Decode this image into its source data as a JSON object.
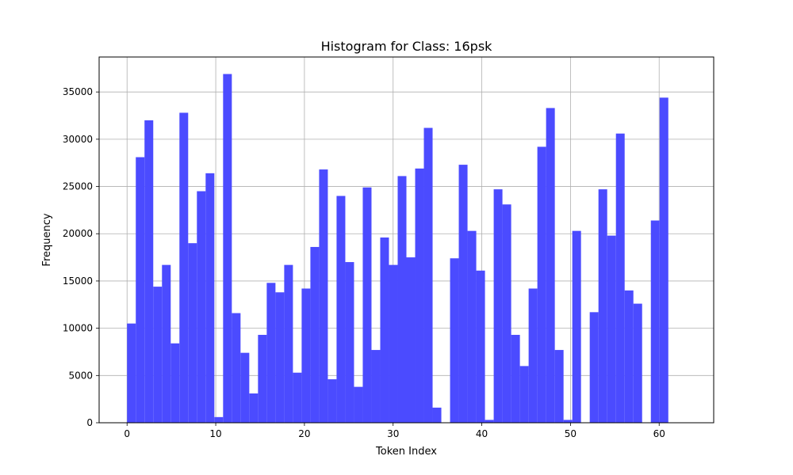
{
  "chart_data": {
    "type": "bar",
    "title": "Histogram for Class: 16psk",
    "xlabel": "Token Index",
    "ylabel": "Frequency",
    "xlim": [
      -3.15,
      66.15
    ],
    "ylim": [
      0,
      38700
    ],
    "xticks": [
      0,
      10,
      20,
      30,
      40,
      50,
      60
    ],
    "yticks": [
      0,
      5000,
      10000,
      15000,
      20000,
      25000,
      30000,
      35000
    ],
    "grid": true,
    "bar_color": "#4b4bff",
    "bin_start": 0,
    "bin_width": 0.984375,
    "values": [
      10500,
      28100,
      32000,
      14400,
      16700,
      8400,
      32800,
      19000,
      24500,
      26400,
      600,
      36900,
      11600,
      7400,
      3100,
      9300,
      14800,
      13800,
      16700,
      5300,
      14200,
      18600,
      26800,
      4600,
      24000,
      17000,
      3800,
      24900,
      7700,
      19600,
      16700,
      26100,
      17500,
      26900,
      31200,
      1600,
      0,
      17400,
      27300,
      20300,
      16100,
      300,
      24700,
      23100,
      9300,
      6000,
      14200,
      29200,
      33300,
      7700,
      300,
      20300,
      0,
      11700,
      24700,
      19800,
      30600,
      14000,
      12600,
      0,
      21400,
      34400,
      0,
      0
    ]
  }
}
